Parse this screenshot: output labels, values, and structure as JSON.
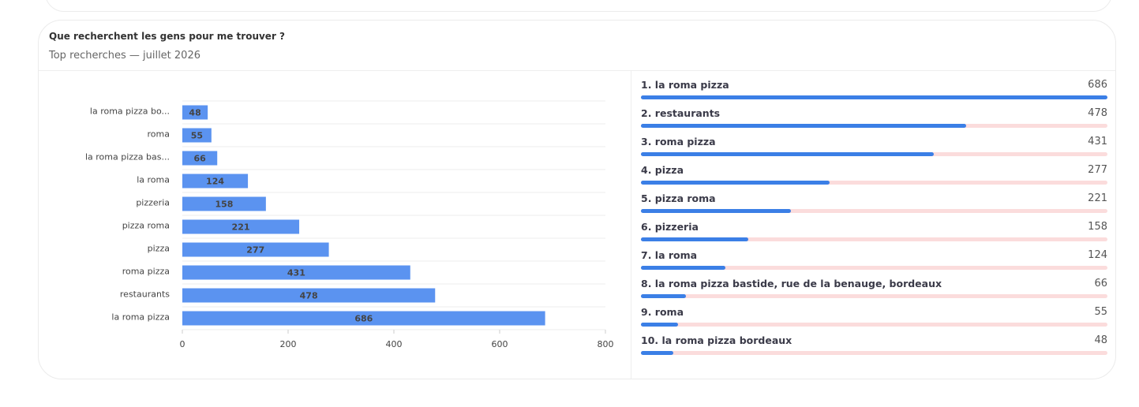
{
  "card": {
    "title": "Que recherchent les gens pour me trouver ?",
    "subtitle": "Top recherches — juillet 2026"
  },
  "chart_data": {
    "type": "bar",
    "orientation": "horizontal",
    "categories": [
      "la roma pizza bo...",
      "roma",
      "la roma pizza bas...",
      "la roma",
      "pizzeria",
      "pizza roma",
      "pizza",
      "roma pizza",
      "restaurants",
      "la roma pizza"
    ],
    "values": [
      48,
      55,
      66,
      124,
      158,
      221,
      277,
      431,
      478,
      686
    ],
    "color": "#5b93f0",
    "xlim": [
      0,
      800
    ],
    "xticks": [
      0,
      200,
      400,
      600,
      800
    ]
  },
  "ranking": {
    "items": [
      {
        "label": "1. la roma pizza",
        "value": 686
      },
      {
        "label": "2. restaurants",
        "value": 478
      },
      {
        "label": "3. roma pizza",
        "value": 431
      },
      {
        "label": "4. pizza",
        "value": 277
      },
      {
        "label": "5. pizza roma",
        "value": 221
      },
      {
        "label": "6. pizzeria",
        "value": 158
      },
      {
        "label": "7. la roma",
        "value": 124
      },
      {
        "label": "8. la roma pizza bastide, rue de la benauge, bordeaux",
        "value": 66
      },
      {
        "label": "9. roma",
        "value": 55
      },
      {
        "label": "10. la roma pizza bordeaux",
        "value": 48
      }
    ]
  }
}
